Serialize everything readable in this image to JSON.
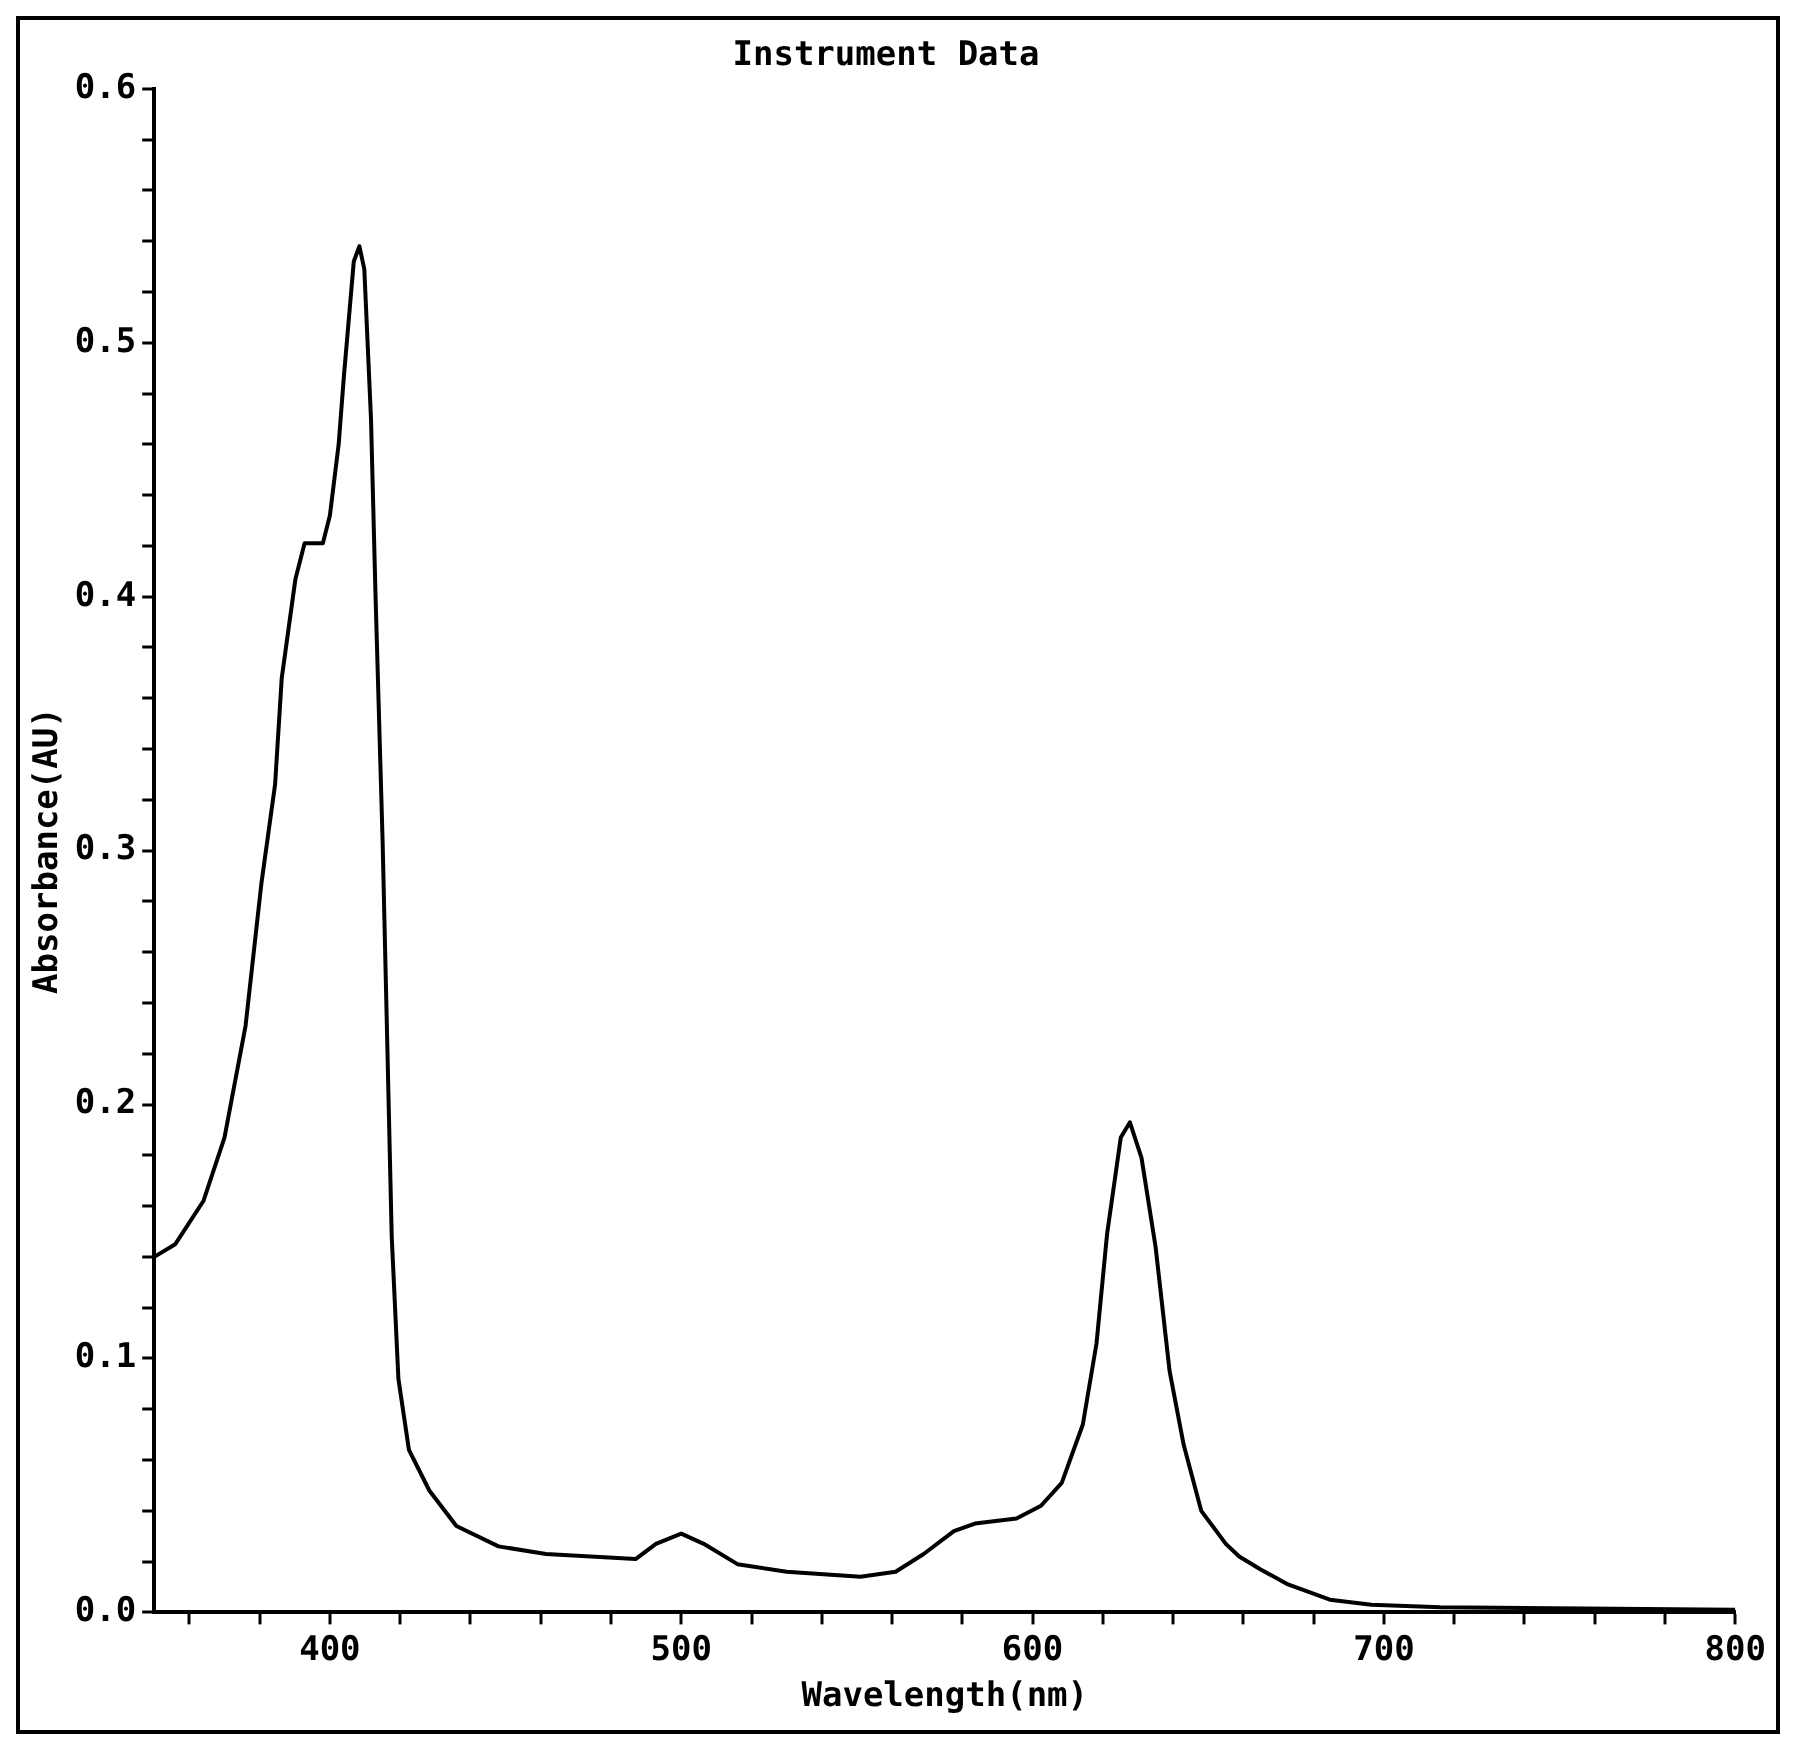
{
  "chart_data": {
    "type": "line",
    "title": "Instrument Data",
    "xlabel": "Wavelength(nm)",
    "ylabel": "Absorbance(AU)",
    "x": [
      350,
      356,
      364,
      370,
      376,
      380.5,
      384.4,
      386.3,
      388.3,
      390.2,
      392.8,
      398,
      400,
      402.5,
      404,
      406.8,
      408.4,
      409.8,
      411.7,
      413,
      415,
      417.6,
      419.5,
      422.5,
      428.3,
      436,
      448,
      461.5,
      487,
      492.8,
      500,
      506.4,
      516,
      530,
      551,
      561,
      569,
      577.6,
      583.6,
      595.4,
      602.4,
      608.3,
      614.3,
      618.2,
      621.2,
      625.1,
      627.7,
      631,
      635,
      639,
      643,
      648,
      655,
      658.8,
      664.8,
      672.7,
      684.6,
      696.4,
      716,
      800
    ],
    "series": [
      {
        "color": "#000000",
        "values": [
          0.14,
          0.145,
          0.162,
          0.187,
          0.231,
          0.287,
          0.326,
          0.368,
          0.388,
          0.407,
          0.421,
          0.421,
          0.432,
          0.46,
          0.487,
          0.532,
          0.538,
          0.529,
          0.47,
          0.4,
          0.304,
          0.148,
          0.092,
          0.064,
          0.048,
          0.034,
          0.026,
          0.023,
          0.021,
          0.027,
          0.031,
          0.027,
          0.019,
          0.016,
          0.014,
          0.016,
          0.023,
          0.032,
          0.035,
          0.037,
          0.042,
          0.051,
          0.074,
          0.106,
          0.149,
          0.187,
          0.193,
          0.179,
          0.144,
          0.095,
          0.066,
          0.04,
          0.027,
          0.022,
          0.017,
          0.011,
          0.005,
          0.003,
          0.002,
          0.001
        ]
      }
    ],
    "xlim": [
      350,
      800
    ],
    "xticks": [
      {
        "value": 360,
        "label": null
      },
      {
        "value": 380,
        "label": null
      },
      400,
      {
        "value": 420,
        "label": null
      },
      {
        "value": 440,
        "label": null
      },
      {
        "value": 460,
        "label": null
      },
      {
        "value": 480,
        "label": null
      },
      500,
      {
        "value": 520,
        "label": null
      },
      {
        "value": 540,
        "label": null
      },
      {
        "value": 560,
        "label": null
      },
      {
        "value": 580,
        "label": null
      },
      600,
      {
        "value": 620,
        "label": null
      },
      {
        "value": 640,
        "label": null
      },
      {
        "value": 660,
        "label": null
      },
      {
        "value": 680,
        "label": null
      },
      700,
      {
        "value": 720,
        "label": null
      },
      {
        "value": 740,
        "label": null
      },
      {
        "value": 760,
        "label": null
      },
      {
        "value": 780,
        "label": null
      },
      800
    ],
    "ylim": [
      0,
      0.6
    ],
    "yticks": [
      {
        "value": 0,
        "label": "0.0"
      },
      {
        "value": 0.02,
        "label": null
      },
      {
        "value": 0.04,
        "label": null
      },
      {
        "value": 0.06,
        "label": null
      },
      {
        "value": 0.08,
        "label": null
      },
      0.1,
      {
        "value": 0.12,
        "label": null
      },
      {
        "value": 0.14,
        "label": null
      },
      {
        "value": 0.16,
        "label": null
      },
      {
        "value": 0.18,
        "label": null
      },
      0.2,
      {
        "value": 0.22,
        "label": null
      },
      {
        "value": 0.24,
        "label": null
      },
      {
        "value": 0.26,
        "label": null
      },
      {
        "value": 0.28,
        "label": null
      },
      0.3,
      {
        "value": 0.32,
        "label": null
      },
      {
        "value": 0.34,
        "label": null
      },
      {
        "value": 0.36,
        "label": null
      },
      {
        "value": 0.38,
        "label": null
      },
      0.4,
      {
        "value": 0.42,
        "label": null
      },
      {
        "value": 0.44,
        "label": null
      },
      {
        "value": 0.46,
        "label": null
      },
      {
        "value": 0.48,
        "label": null
      },
      0.5,
      {
        "value": 0.52,
        "label": null
      },
      {
        "value": 0.54,
        "label": null
      },
      {
        "value": 0.56,
        "label": null
      },
      {
        "value": 0.58,
        "label": null
      },
      0.6
    ],
    "grid": false,
    "legend": false,
    "marker": "none",
    "line_style": "solid"
  }
}
